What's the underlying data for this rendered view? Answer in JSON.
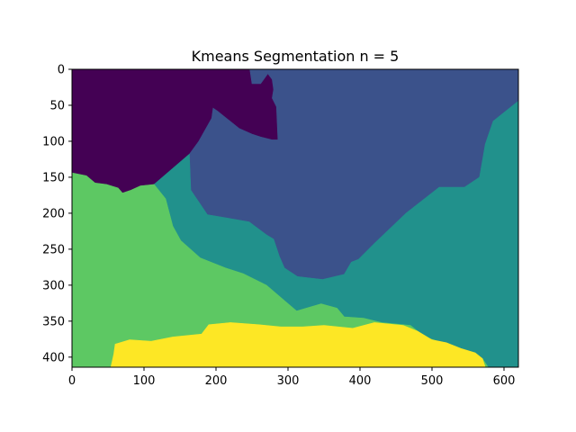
{
  "chart_data": {
    "type": "heatmap",
    "title": "Kmeans Segmentation n = 5",
    "xlabel": "",
    "ylabel": "",
    "xlim": [
      0,
      620
    ],
    "ylim": [
      414,
      0
    ],
    "x_ticks": [
      0,
      100,
      200,
      300,
      400,
      500,
      600
    ],
    "y_ticks": [
      0,
      50,
      100,
      150,
      200,
      250,
      300,
      350,
      400
    ],
    "colormap": "viridis",
    "n_clusters": 5,
    "grid": false,
    "segments": [
      {
        "cluster": 0,
        "color": "#440154",
        "boundary": [
          [
            0,
            0
          ],
          [
            247,
            0
          ],
          [
            250,
            20
          ],
          [
            262,
            20
          ],
          [
            272,
            6
          ],
          [
            278,
            14
          ],
          [
            280,
            28
          ],
          [
            278,
            40
          ],
          [
            284,
            52
          ],
          [
            286,
            98
          ],
          [
            278,
            98
          ],
          [
            262,
            94
          ],
          [
            250,
            90
          ],
          [
            232,
            82
          ],
          [
            202,
            58
          ],
          [
            196,
            54
          ],
          [
            194,
            68
          ],
          [
            176,
            100
          ],
          [
            163,
            118
          ],
          [
            114,
            160
          ],
          [
            95,
            162
          ],
          [
            82,
            168
          ],
          [
            70,
            172
          ],
          [
            64,
            165
          ],
          [
            48,
            160
          ],
          [
            32,
            158
          ],
          [
            20,
            148
          ],
          [
            0,
            144
          ]
        ]
      },
      {
        "cluster": 1,
        "color": "#3b528b",
        "boundary": [
          [
            247,
            0
          ],
          [
            620,
            0
          ],
          [
            620,
            44
          ],
          [
            585,
            72
          ],
          [
            574,
            104
          ],
          [
            566,
            150
          ],
          [
            545,
            164
          ],
          [
            510,
            164
          ],
          [
            464,
            200
          ],
          [
            420,
            242
          ],
          [
            398,
            264
          ],
          [
            388,
            268
          ],
          [
            378,
            285
          ],
          [
            348,
            292
          ],
          [
            313,
            288
          ],
          [
            295,
            276
          ],
          [
            288,
            260
          ],
          [
            280,
            236
          ],
          [
            270,
            230
          ],
          [
            246,
            212
          ],
          [
            188,
            202
          ],
          [
            165,
            168
          ],
          [
            163,
            118
          ],
          [
            176,
            100
          ],
          [
            194,
            68
          ],
          [
            196,
            54
          ],
          [
            202,
            58
          ],
          [
            232,
            82
          ],
          [
            250,
            90
          ],
          [
            262,
            94
          ],
          [
            278,
            98
          ],
          [
            286,
            98
          ],
          [
            284,
            52
          ],
          [
            278,
            40
          ],
          [
            280,
            28
          ],
          [
            278,
            14
          ],
          [
            272,
            6
          ],
          [
            262,
            20
          ],
          [
            250,
            20
          ]
        ]
      },
      {
        "cluster": 2,
        "color": "#21918c",
        "boundary": [
          [
            585,
            72
          ],
          [
            620,
            44
          ],
          [
            620,
            414
          ],
          [
            578,
            414
          ],
          [
            570,
            402
          ],
          [
            550,
            392
          ],
          [
            490,
            372
          ],
          [
            470,
            356
          ],
          [
            430,
            352
          ],
          [
            405,
            346
          ],
          [
            378,
            344
          ],
          [
            368,
            332
          ],
          [
            346,
            326
          ],
          [
            312,
            336
          ],
          [
            270,
            300
          ],
          [
            238,
            284
          ],
          [
            213,
            276
          ],
          [
            178,
            262
          ],
          [
            151,
            238
          ],
          [
            140,
            218
          ],
          [
            130,
            180
          ],
          [
            114,
            160
          ],
          [
            163,
            118
          ],
          [
            165,
            168
          ],
          [
            188,
            202
          ],
          [
            246,
            212
          ],
          [
            270,
            230
          ],
          [
            280,
            236
          ],
          [
            288,
            260
          ],
          [
            295,
            276
          ],
          [
            313,
            288
          ],
          [
            348,
            292
          ],
          [
            378,
            285
          ],
          [
            388,
            268
          ],
          [
            398,
            264
          ],
          [
            420,
            242
          ],
          [
            464,
            200
          ],
          [
            510,
            164
          ],
          [
            545,
            164
          ],
          [
            566,
            150
          ],
          [
            574,
            104
          ]
        ]
      },
      {
        "cluster": 3,
        "color": "#5dc863",
        "boundary": [
          [
            0,
            144
          ],
          [
            20,
            148
          ],
          [
            32,
            158
          ],
          [
            48,
            160
          ],
          [
            64,
            165
          ],
          [
            70,
            172
          ],
          [
            82,
            168
          ],
          [
            95,
            162
          ],
          [
            114,
            160
          ],
          [
            130,
            180
          ],
          [
            140,
            218
          ],
          [
            151,
            238
          ],
          [
            178,
            262
          ],
          [
            213,
            276
          ],
          [
            238,
            284
          ],
          [
            270,
            300
          ],
          [
            312,
            336
          ],
          [
            346,
            326
          ],
          [
            368,
            332
          ],
          [
            378,
            344
          ],
          [
            405,
            346
          ],
          [
            430,
            352
          ],
          [
            470,
            356
          ],
          [
            490,
            372
          ],
          [
            550,
            392
          ],
          [
            570,
            402
          ],
          [
            578,
            414
          ],
          [
            0,
            414
          ]
        ]
      },
      {
        "cluster": 4,
        "color": "#fde725",
        "boundary": [
          [
            54,
            414
          ],
          [
            58,
            396
          ],
          [
            60,
            382
          ],
          [
            80,
            376
          ],
          [
            110,
            378
          ],
          [
            140,
            372
          ],
          [
            180,
            368
          ],
          [
            190,
            355
          ],
          [
            220,
            352
          ],
          [
            260,
            355
          ],
          [
            290,
            358
          ],
          [
            320,
            358
          ],
          [
            350,
            356
          ],
          [
            390,
            360
          ],
          [
            420,
            352
          ],
          [
            460,
            356
          ],
          [
            480,
            364
          ],
          [
            500,
            376
          ],
          [
            520,
            380
          ],
          [
            540,
            388
          ],
          [
            560,
            394
          ],
          [
            570,
            402
          ],
          [
            574,
            414
          ]
        ]
      }
    ]
  }
}
